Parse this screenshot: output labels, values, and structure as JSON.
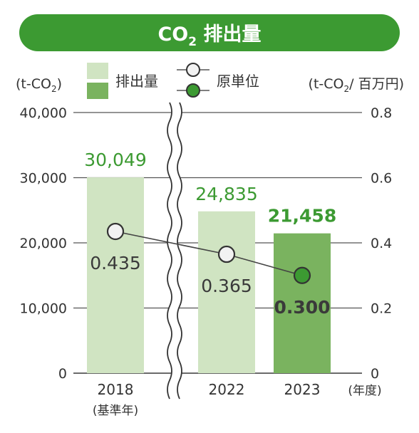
{
  "chart_data": {
    "type": "bar",
    "title": {
      "main": "CO",
      "subscript": "2",
      "rest": " 排出量"
    },
    "left_axis_unit": {
      "main": "(t-CO",
      "subscript": "2",
      "rest": ")"
    },
    "right_axis_unit": {
      "main": "(t-CO",
      "subscript": "2",
      "rest": "/ 百万円)"
    },
    "legend": [
      {
        "name": "排出量",
        "kind": "bar",
        "colors": [
          "#d0e4c2",
          "#7ab35f"
        ]
      },
      {
        "name": "原単位",
        "kind": "line-marker",
        "colors": [
          "#f2f2f2",
          "#3c9a32"
        ]
      }
    ],
    "categories": [
      "2018",
      "2022",
      "2023"
    ],
    "category_notes": [
      "(基準年)",
      "",
      ""
    ],
    "x_unit_label": "(年度)",
    "left_ylim": [
      0,
      40000
    ],
    "left_ticks": [
      "0",
      "10,000",
      "20,000",
      "30,000",
      "40,000"
    ],
    "right_ylim": [
      0,
      0.8
    ],
    "right_ticks": [
      "0",
      "0.2",
      "0.4",
      "0.6",
      "0.8"
    ],
    "axis_break_after_index": 0,
    "grid": true,
    "series": [
      {
        "name": "排出量",
        "type": "bar",
        "axis": "left",
        "values": [
          30049,
          24835,
          21458
        ],
        "labels": [
          "30,049",
          "24,835",
          "21,458"
        ],
        "colors": [
          "#d0e4c2",
          "#d0e4c2",
          "#7ab35f"
        ]
      },
      {
        "name": "原単位",
        "type": "line",
        "axis": "right",
        "values": [
          0.435,
          0.365,
          0.3
        ],
        "labels": [
          "0.435",
          "0.365",
          "0.300"
        ],
        "colors": [
          "#f2f2f2",
          "#f2f2f2",
          "#3c9a32"
        ]
      }
    ],
    "colors": {
      "banner": "#3c9a32",
      "label_green": "#3c9a32",
      "grid": "#555555",
      "text": "#333333"
    }
  }
}
